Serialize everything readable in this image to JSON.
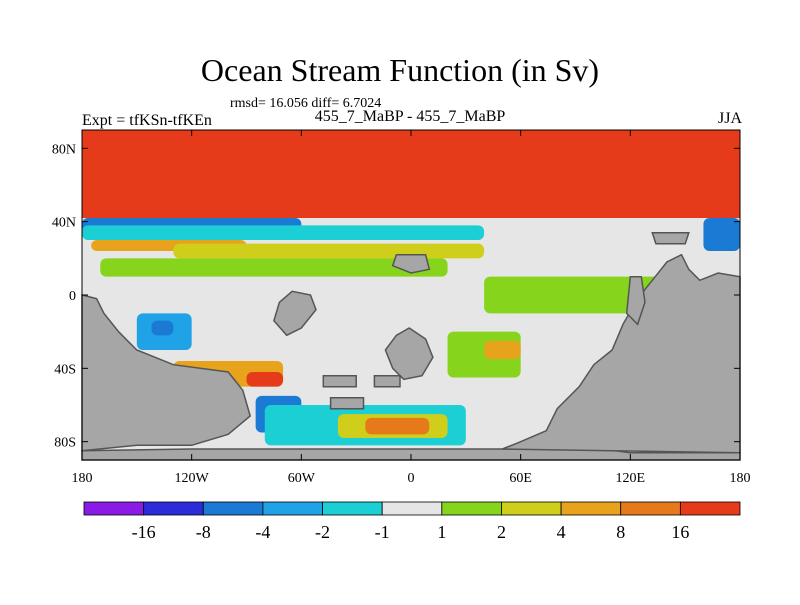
{
  "figure": {
    "title": "Ocean Stream Function (in Sv)",
    "stats_text": "rmsd= 16.056 diff= 6.7024",
    "subtitle": "455_7_MaBP - 455_7_MaBP",
    "left_label": "Expt = tfKSn-tfKEn",
    "right_label": "JJA"
  },
  "chart_data": {
    "type": "heatmap",
    "title": "Ocean Stream Function (in Sv)",
    "subtitle": "455_7_MaBP - 455_7_MaBP",
    "annotations": [
      "rmsd= 16.056 diff= 6.7024",
      "Expt = tfKSn-tfKEn",
      "JJA"
    ],
    "xlim": [
      -180,
      180
    ],
    "ylim": [
      -90,
      90
    ],
    "x_ticks": [
      {
        "value": -180,
        "label": "180"
      },
      {
        "value": -120,
        "label": "120W"
      },
      {
        "value": -60,
        "label": "60W"
      },
      {
        "value": 0,
        "label": "0"
      },
      {
        "value": 60,
        "label": "60E"
      },
      {
        "value": 120,
        "label": "120E"
      },
      {
        "value": 180,
        "label": "180"
      }
    ],
    "y_ticks": [
      {
        "value": 80,
        "label": "80N"
      },
      {
        "value": 40,
        "label": "40N"
      },
      {
        "value": 0,
        "label": "0"
      },
      {
        "value": -40,
        "label": "40S"
      },
      {
        "value": -80,
        "label": "80S"
      }
    ],
    "colorbar": {
      "orientation": "horizontal",
      "labels": [
        "-16",
        "-8",
        "-4",
        "-2",
        "-1",
        "1",
        "2",
        "4",
        "8",
        "16"
      ],
      "colors": [
        "#8a1be6",
        "#2b2bd9",
        "#1a7ad4",
        "#1fa3e6",
        "#1bcfd4",
        "#e6e6e6",
        "#86d41b",
        "#cfcf1b",
        "#e6a31b",
        "#e67a1b",
        "#e63b1b"
      ]
    },
    "land_color": "#a6a6a6",
    "fields": [
      {
        "name": "northern-band",
        "lon": [
          -180,
          180
        ],
        "lat": [
          42,
          90
        ],
        "color": "#e63b1b"
      },
      {
        "name": "band-40n-blue",
        "lon": [
          -180,
          -60
        ],
        "lat": [
          34,
          42
        ],
        "color": "#1a7ad4"
      },
      {
        "name": "band-35n-cyan",
        "lon": [
          -180,
          40
        ],
        "lat": [
          30,
          38
        ],
        "color": "#1bcfd4"
      },
      {
        "name": "band-30n-orange",
        "lon": [
          -175,
          -90
        ],
        "lat": [
          24,
          30
        ],
        "color": "#e6a31b"
      },
      {
        "name": "band-25n-yellow",
        "lon": [
          -130,
          40
        ],
        "lat": [
          20,
          28
        ],
        "color": "#cfcf1b"
      },
      {
        "name": "eq-green",
        "lon": [
          -170,
          20
        ],
        "lat": [
          10,
          20
        ],
        "color": "#86d41b"
      },
      {
        "name": "eq-green-east",
        "lon": [
          40,
          140
        ],
        "lat": [
          -10,
          10
        ],
        "color": "#86d41b"
      },
      {
        "name": "south-pac-blue",
        "lon": [
          -150,
          -120
        ],
        "lat": [
          -30,
          -10
        ],
        "color": "#1fa3e6"
      },
      {
        "name": "south-pac-dark",
        "lon": [
          -142,
          -130
        ],
        "lat": [
          -22,
          -14
        ],
        "color": "#1a7ad4"
      },
      {
        "name": "south-orange",
        "lon": [
          -130,
          -70
        ],
        "lat": [
          -50,
          -36
        ],
        "color": "#e6a31b"
      },
      {
        "name": "south-red",
        "lon": [
          -90,
          -70
        ],
        "lat": [
          -50,
          -42
        ],
        "color": "#e63b1b"
      },
      {
        "name": "drake-blue",
        "lon": [
          -85,
          -60
        ],
        "lat": [
          -75,
          -55
        ],
        "color": "#1a7ad4"
      },
      {
        "name": "south-cyan",
        "lon": [
          -80,
          30
        ],
        "lat": [
          -82,
          -60
        ],
        "color": "#1bcfd4"
      },
      {
        "name": "south-yellow",
        "lon": [
          -40,
          20
        ],
        "lat": [
          -78,
          -65
        ],
        "color": "#cfcf1b"
      },
      {
        "name": "south-orange-core",
        "lon": [
          -25,
          10
        ],
        "lat": [
          -76,
          -67
        ],
        "color": "#e67a1b"
      },
      {
        "name": "indian-green",
        "lon": [
          20,
          60
        ],
        "lat": [
          -45,
          -20
        ],
        "color": "#86d41b"
      },
      {
        "name": "indian-orange",
        "lon": [
          40,
          60
        ],
        "lat": [
          -35,
          -25
        ],
        "color": "#e6a31b"
      },
      {
        "name": "east-blue",
        "lon": [
          160,
          180
        ],
        "lat": [
          24,
          42
        ],
        "color": "#1a7ad4"
      }
    ]
  }
}
